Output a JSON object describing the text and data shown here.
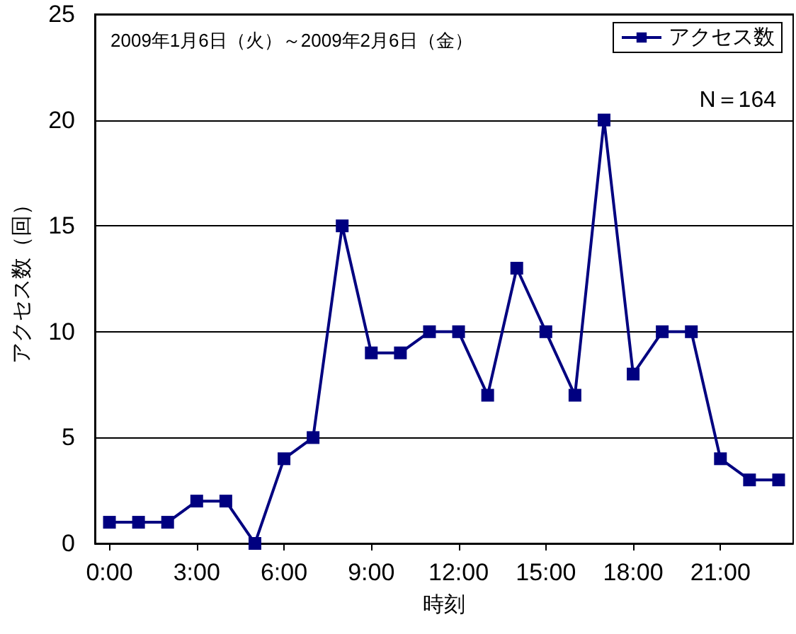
{
  "chart_data": {
    "type": "line",
    "xlabel": "時刻",
    "ylabel": "アクセス数（回）",
    "annotations": [
      "2009年1月6日（火）～2009年2月6日（金）",
      "N＝164"
    ],
    "x": [
      0,
      1,
      2,
      3,
      4,
      5,
      6,
      7,
      8,
      9,
      10,
      11,
      12,
      13,
      14,
      15,
      16,
      17,
      18,
      19,
      20,
      21,
      22,
      23
    ],
    "series": [
      {
        "name": "アクセス数",
        "color": "#000080",
        "values": [
          1,
          1,
          1,
          2,
          2,
          0,
          4,
          5,
          15,
          9,
          9,
          10,
          10,
          7,
          13,
          10,
          7,
          20,
          8,
          10,
          10,
          4,
          3,
          3
        ]
      }
    ],
    "xlim": [
      -0.5,
      23.5
    ],
    "xticks": [
      {
        "value": 0,
        "label": "0:00"
      },
      {
        "value": 3,
        "label": "3:00"
      },
      {
        "value": 6,
        "label": "6:00"
      },
      {
        "value": 9,
        "label": "9:00"
      },
      {
        "value": 12,
        "label": "12:00"
      },
      {
        "value": 15,
        "label": "15:00"
      },
      {
        "value": 18,
        "label": "18:00"
      },
      {
        "value": 21,
        "label": "21:00"
      }
    ],
    "ylim": [
      0,
      25
    ],
    "yticks": [
      0,
      5,
      10,
      15,
      20,
      25
    ],
    "grid": "y",
    "legend": "top right",
    "marker": "square",
    "line_style": "solid"
  }
}
